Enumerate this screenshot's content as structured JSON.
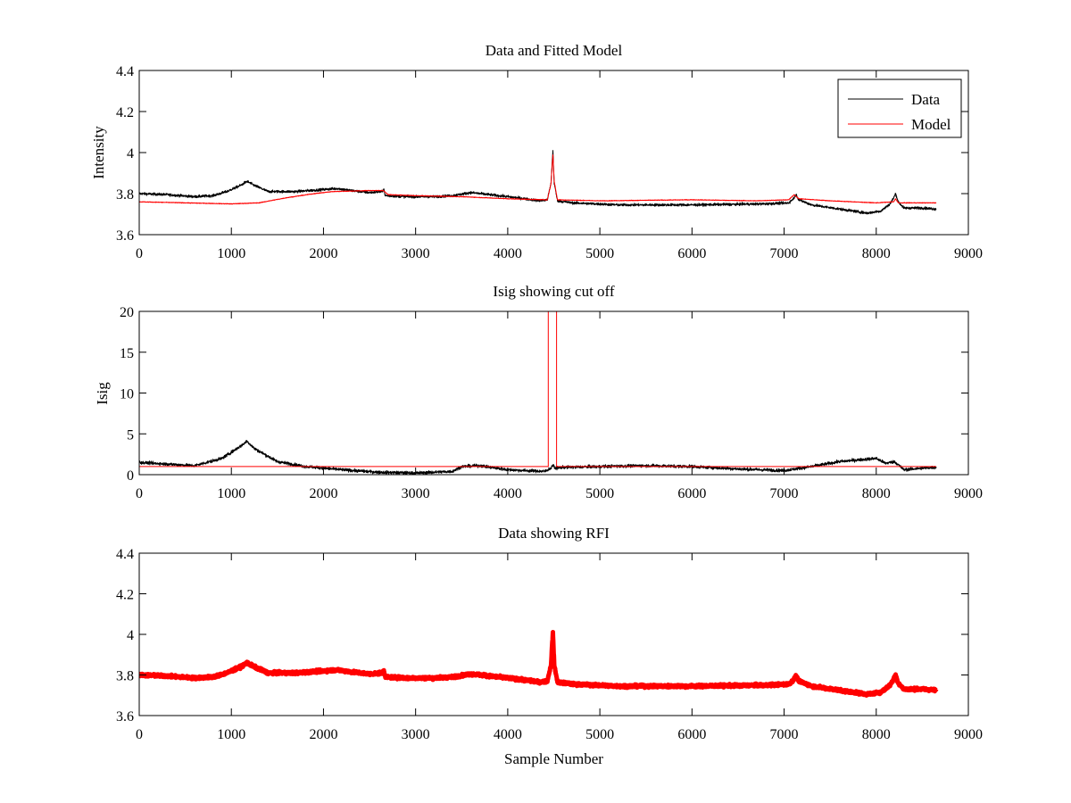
{
  "colors": {
    "data": "#000000",
    "model": "#ff0000",
    "rfi": "#ff0000",
    "axes": "#000000",
    "background": "#ffffff"
  },
  "chart_data": [
    {
      "type": "line",
      "title": "Data and Fitted Model",
      "xlabel": "",
      "ylabel": "Intensity",
      "xlim": [
        0,
        9000
      ],
      "ylim": [
        3.6,
        4.4
      ],
      "xticks": [
        "0",
        "1000",
        "2000",
        "3000",
        "4000",
        "5000",
        "6000",
        "7000",
        "8000",
        "9000"
      ],
      "yticks": [
        "3.6",
        "3.8",
        "4",
        "4.2",
        "4.4"
      ],
      "grid": false,
      "legend": {
        "placement": "top-right",
        "entries": [
          "Data",
          "Model"
        ]
      },
      "series": [
        {
          "name": "Data",
          "color": "#000000",
          "noise": 0.006,
          "points": [
            [
              0,
              3.8
            ],
            [
              300,
              3.795
            ],
            [
              600,
              3.785
            ],
            [
              800,
              3.79
            ],
            [
              950,
              3.81
            ],
            [
              1100,
              3.84
            ],
            [
              1170,
              3.86
            ],
            [
              1250,
              3.84
            ],
            [
              1400,
              3.81
            ],
            [
              1700,
              3.81
            ],
            [
              2000,
              3.82
            ],
            [
              2150,
              3.825
            ],
            [
              2300,
              3.815
            ],
            [
              2500,
              3.805
            ],
            [
              2640,
              3.81
            ],
            [
              2655,
              3.825
            ],
            [
              2670,
              3.79
            ],
            [
              2900,
              3.785
            ],
            [
              3200,
              3.785
            ],
            [
              3400,
              3.79
            ],
            [
              3600,
              3.805
            ],
            [
              3800,
              3.795
            ],
            [
              4100,
              3.78
            ],
            [
              4350,
              3.765
            ],
            [
              4430,
              3.77
            ],
            [
              4470,
              3.85
            ],
            [
              4490,
              4.01
            ],
            [
              4505,
              3.85
            ],
            [
              4540,
              3.765
            ],
            [
              4700,
              3.755
            ],
            [
              5200,
              3.745
            ],
            [
              6000,
              3.745
            ],
            [
              6800,
              3.75
            ],
            [
              7050,
              3.755
            ],
            [
              7100,
              3.775
            ],
            [
              7130,
              3.795
            ],
            [
              7160,
              3.77
            ],
            [
              7300,
              3.745
            ],
            [
              7600,
              3.725
            ],
            [
              7900,
              3.705
            ],
            [
              8050,
              3.715
            ],
            [
              8150,
              3.75
            ],
            [
              8190,
              3.78
            ],
            [
              8210,
              3.8
            ],
            [
              8240,
              3.76
            ],
            [
              8300,
              3.73
            ],
            [
              8500,
              3.73
            ],
            [
              8650,
              3.725
            ]
          ]
        },
        {
          "name": "Model",
          "color": "#ff0000",
          "noise": 0.0015,
          "points": [
            [
              0,
              3.76
            ],
            [
              500,
              3.755
            ],
            [
              1000,
              3.75
            ],
            [
              1300,
              3.755
            ],
            [
              1600,
              3.78
            ],
            [
              1900,
              3.8
            ],
            [
              2100,
              3.81
            ],
            [
              2500,
              3.815
            ],
            [
              2650,
              3.815
            ],
            [
              2700,
              3.795
            ],
            [
              3000,
              3.79
            ],
            [
              3500,
              3.785
            ],
            [
              4000,
              3.775
            ],
            [
              4430,
              3.77
            ],
            [
              4470,
              3.85
            ],
            [
              4490,
              3.99
            ],
            [
              4505,
              3.86
            ],
            [
              4540,
              3.77
            ],
            [
              5000,
              3.765
            ],
            [
              6000,
              3.77
            ],
            [
              6700,
              3.765
            ],
            [
              7050,
              3.77
            ],
            [
              7110,
              3.795
            ],
            [
              7160,
              3.775
            ],
            [
              7500,
              3.765
            ],
            [
              8000,
              3.755
            ],
            [
              8190,
              3.76
            ],
            [
              8210,
              3.775
            ],
            [
              8240,
              3.755
            ],
            [
              8650,
              3.755
            ]
          ]
        }
      ]
    },
    {
      "type": "line",
      "title": "Isig showing cut off",
      "xlabel": "",
      "ylabel": "Isig",
      "xlim": [
        0,
        9000
      ],
      "ylim": [
        0,
        20
      ],
      "xticks": [
        "0",
        "1000",
        "2000",
        "3000",
        "4000",
        "5000",
        "6000",
        "7000",
        "8000",
        "9000"
      ],
      "yticks": [
        "0",
        "5",
        "10",
        "15",
        "20"
      ],
      "grid": false,
      "series": [
        {
          "name": "",
          "color": "#000000",
          "noise": 0.18,
          "points": [
            [
              0,
              1.5
            ],
            [
              300,
              1.3
            ],
            [
              600,
              1.1
            ],
            [
              900,
              2.0
            ],
            [
              1100,
              3.5
            ],
            [
              1170,
              4.1
            ],
            [
              1250,
              3.2
            ],
            [
              1500,
              1.6
            ],
            [
              1800,
              1.0
            ],
            [
              2200,
              0.6
            ],
            [
              2600,
              0.3
            ],
            [
              3000,
              0.2
            ],
            [
              3400,
              0.4
            ],
            [
              3500,
              1.0
            ],
            [
              3700,
              1.1
            ],
            [
              4000,
              0.6
            ],
            [
              4400,
              0.4
            ],
            [
              4470,
              0.8
            ],
            [
              4490,
              1.2
            ],
            [
              4510,
              0.8
            ],
            [
              4600,
              0.9
            ],
            [
              5000,
              1.0
            ],
            [
              5500,
              1.1
            ],
            [
              6000,
              1.0
            ],
            [
              6500,
              0.7
            ],
            [
              7000,
              0.5
            ],
            [
              7300,
              1.0
            ],
            [
              7600,
              1.6
            ],
            [
              8000,
              2.0
            ],
            [
              8100,
              1.4
            ],
            [
              8200,
              1.6
            ],
            [
              8300,
              0.6
            ],
            [
              8500,
              0.8
            ],
            [
              8650,
              0.9
            ]
          ]
        },
        {
          "name": "",
          "color": "#ff0000",
          "noise": 0,
          "points": [
            [
              0,
              1.0
            ],
            [
              4440,
              1.0
            ],
            [
              4440,
              20.5
            ],
            [
              4530,
              20.5
            ],
            [
              4530,
              1.0
            ],
            [
              8650,
              1.0
            ]
          ]
        }
      ]
    },
    {
      "type": "scatter",
      "title": "Data showing RFI",
      "xlabel": "Sample Number",
      "ylabel": "",
      "xlim": [
        0,
        9000
      ],
      "ylim": [
        3.6,
        4.4
      ],
      "xticks": [
        "0",
        "1000",
        "2000",
        "3000",
        "4000",
        "5000",
        "6000",
        "7000",
        "8000",
        "9000"
      ],
      "yticks": [
        "3.6",
        "3.8",
        "4",
        "4.2",
        "4.4"
      ],
      "grid": false,
      "series": [
        {
          "name": "",
          "color": "#ff0000",
          "noise": 0.006,
          "points": [
            [
              0,
              3.8
            ],
            [
              300,
              3.795
            ],
            [
              600,
              3.785
            ],
            [
              800,
              3.79
            ],
            [
              950,
              3.81
            ],
            [
              1100,
              3.84
            ],
            [
              1170,
              3.86
            ],
            [
              1250,
              3.84
            ],
            [
              1400,
              3.81
            ],
            [
              1700,
              3.81
            ],
            [
              2000,
              3.82
            ],
            [
              2150,
              3.825
            ],
            [
              2300,
              3.815
            ],
            [
              2500,
              3.805
            ],
            [
              2640,
              3.81
            ],
            [
              2655,
              3.825
            ],
            [
              2670,
              3.79
            ],
            [
              2900,
              3.785
            ],
            [
              3200,
              3.785
            ],
            [
              3400,
              3.79
            ],
            [
              3600,
              3.805
            ],
            [
              3800,
              3.795
            ],
            [
              4100,
              3.78
            ],
            [
              4350,
              3.765
            ],
            [
              4430,
              3.77
            ],
            [
              4470,
              3.85
            ],
            [
              4490,
              4.01
            ],
            [
              4505,
              3.85
            ],
            [
              4540,
              3.765
            ],
            [
              4700,
              3.755
            ],
            [
              5200,
              3.745
            ],
            [
              6000,
              3.745
            ],
            [
              6800,
              3.75
            ],
            [
              7050,
              3.755
            ],
            [
              7100,
              3.775
            ],
            [
              7130,
              3.795
            ],
            [
              7160,
              3.77
            ],
            [
              7300,
              3.745
            ],
            [
              7600,
              3.725
            ],
            [
              7900,
              3.705
            ],
            [
              8050,
              3.715
            ],
            [
              8150,
              3.75
            ],
            [
              8190,
              3.78
            ],
            [
              8210,
              3.8
            ],
            [
              8240,
              3.76
            ],
            [
              8300,
              3.73
            ],
            [
              8500,
              3.73
            ],
            [
              8650,
              3.725
            ]
          ]
        }
      ]
    }
  ]
}
